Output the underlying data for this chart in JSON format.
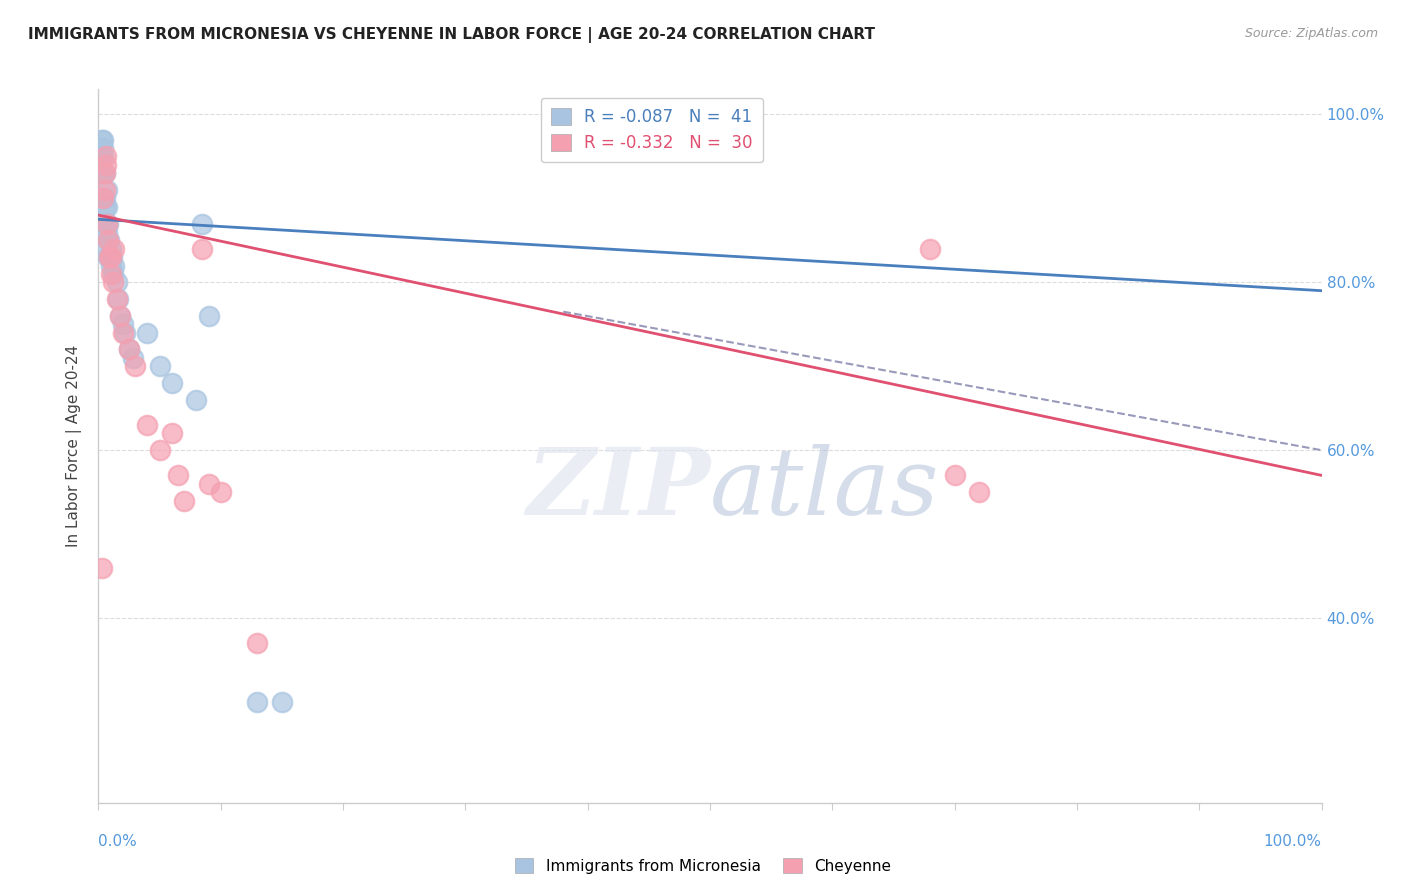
{
  "title": "IMMIGRANTS FROM MICRONESIA VS CHEYENNE IN LABOR FORCE | AGE 20-24 CORRELATION CHART",
  "source": "Source: ZipAtlas.com",
  "ylabel": "In Labor Force | Age 20-24",
  "right_yticks": [
    "100.0%",
    "80.0%",
    "60.0%",
    "40.0%"
  ],
  "right_ytick_vals": [
    1.0,
    0.8,
    0.6,
    0.4
  ],
  "legend_blue_label": "R = -0.087   N =  41",
  "legend_pink_label": "R = -0.332   N =  30",
  "blue_color": "#a8c4e0",
  "pink_color": "#f4a0b0",
  "blue_line_color": "#4a7fbd",
  "pink_line_color": "#e05070",
  "dashed_line_color": "#9999bb",
  "blue_scatter_x": [
    0.003,
    0.003,
    0.004,
    0.004,
    0.004,
    0.004,
    0.005,
    0.005,
    0.005,
    0.005,
    0.006,
    0.006,
    0.007,
    0.007,
    0.007,
    0.007,
    0.008,
    0.008,
    0.008,
    0.009,
    0.009,
    0.01,
    0.01,
    0.011,
    0.012,
    0.013,
    0.015,
    0.016,
    0.018,
    0.02,
    0.022,
    0.025,
    0.028,
    0.04,
    0.05,
    0.06,
    0.08,
    0.085,
    0.09,
    0.13,
    0.15
  ],
  "blue_scatter_y": [
    0.95,
    0.97,
    0.93,
    0.95,
    0.96,
    0.97,
    0.87,
    0.89,
    0.9,
    0.93,
    0.84,
    0.87,
    0.86,
    0.87,
    0.89,
    0.91,
    0.83,
    0.85,
    0.87,
    0.83,
    0.85,
    0.82,
    0.84,
    0.83,
    0.81,
    0.82,
    0.8,
    0.78,
    0.76,
    0.75,
    0.74,
    0.72,
    0.71,
    0.74,
    0.7,
    0.68,
    0.66,
    0.87,
    0.76,
    0.3,
    0.3
  ],
  "pink_scatter_x": [
    0.003,
    0.004,
    0.005,
    0.005,
    0.006,
    0.006,
    0.007,
    0.008,
    0.009,
    0.01,
    0.01,
    0.012,
    0.013,
    0.015,
    0.018,
    0.02,
    0.025,
    0.03,
    0.04,
    0.05,
    0.06,
    0.065,
    0.07,
    0.085,
    0.09,
    0.1,
    0.13,
    0.68,
    0.7,
    0.72
  ],
  "pink_scatter_y": [
    0.46,
    0.9,
    0.91,
    0.93,
    0.94,
    0.95,
    0.87,
    0.85,
    0.83,
    0.81,
    0.83,
    0.8,
    0.84,
    0.78,
    0.76,
    0.74,
    0.72,
    0.7,
    0.63,
    0.6,
    0.62,
    0.57,
    0.54,
    0.84,
    0.56,
    0.55,
    0.37,
    0.84,
    0.57,
    0.55
  ],
  "blue_line_x": [
    0.0,
    1.0
  ],
  "blue_line_y": [
    0.875,
    0.79
  ],
  "pink_line_x": [
    0.0,
    1.0
  ],
  "pink_line_y": [
    0.88,
    0.57
  ],
  "dashed_line_x": [
    0.38,
    1.0
  ],
  "dashed_line_y": [
    0.765,
    0.6
  ],
  "xlim": [
    0.0,
    1.0
  ],
  "ylim": [
    0.18,
    1.03
  ],
  "background_color": "#ffffff",
  "grid_color": "#dddddd",
  "xtick_vals": [
    0.0,
    0.1,
    0.2,
    0.3,
    0.4,
    0.5,
    0.6,
    0.7,
    0.8,
    0.9,
    1.0
  ]
}
